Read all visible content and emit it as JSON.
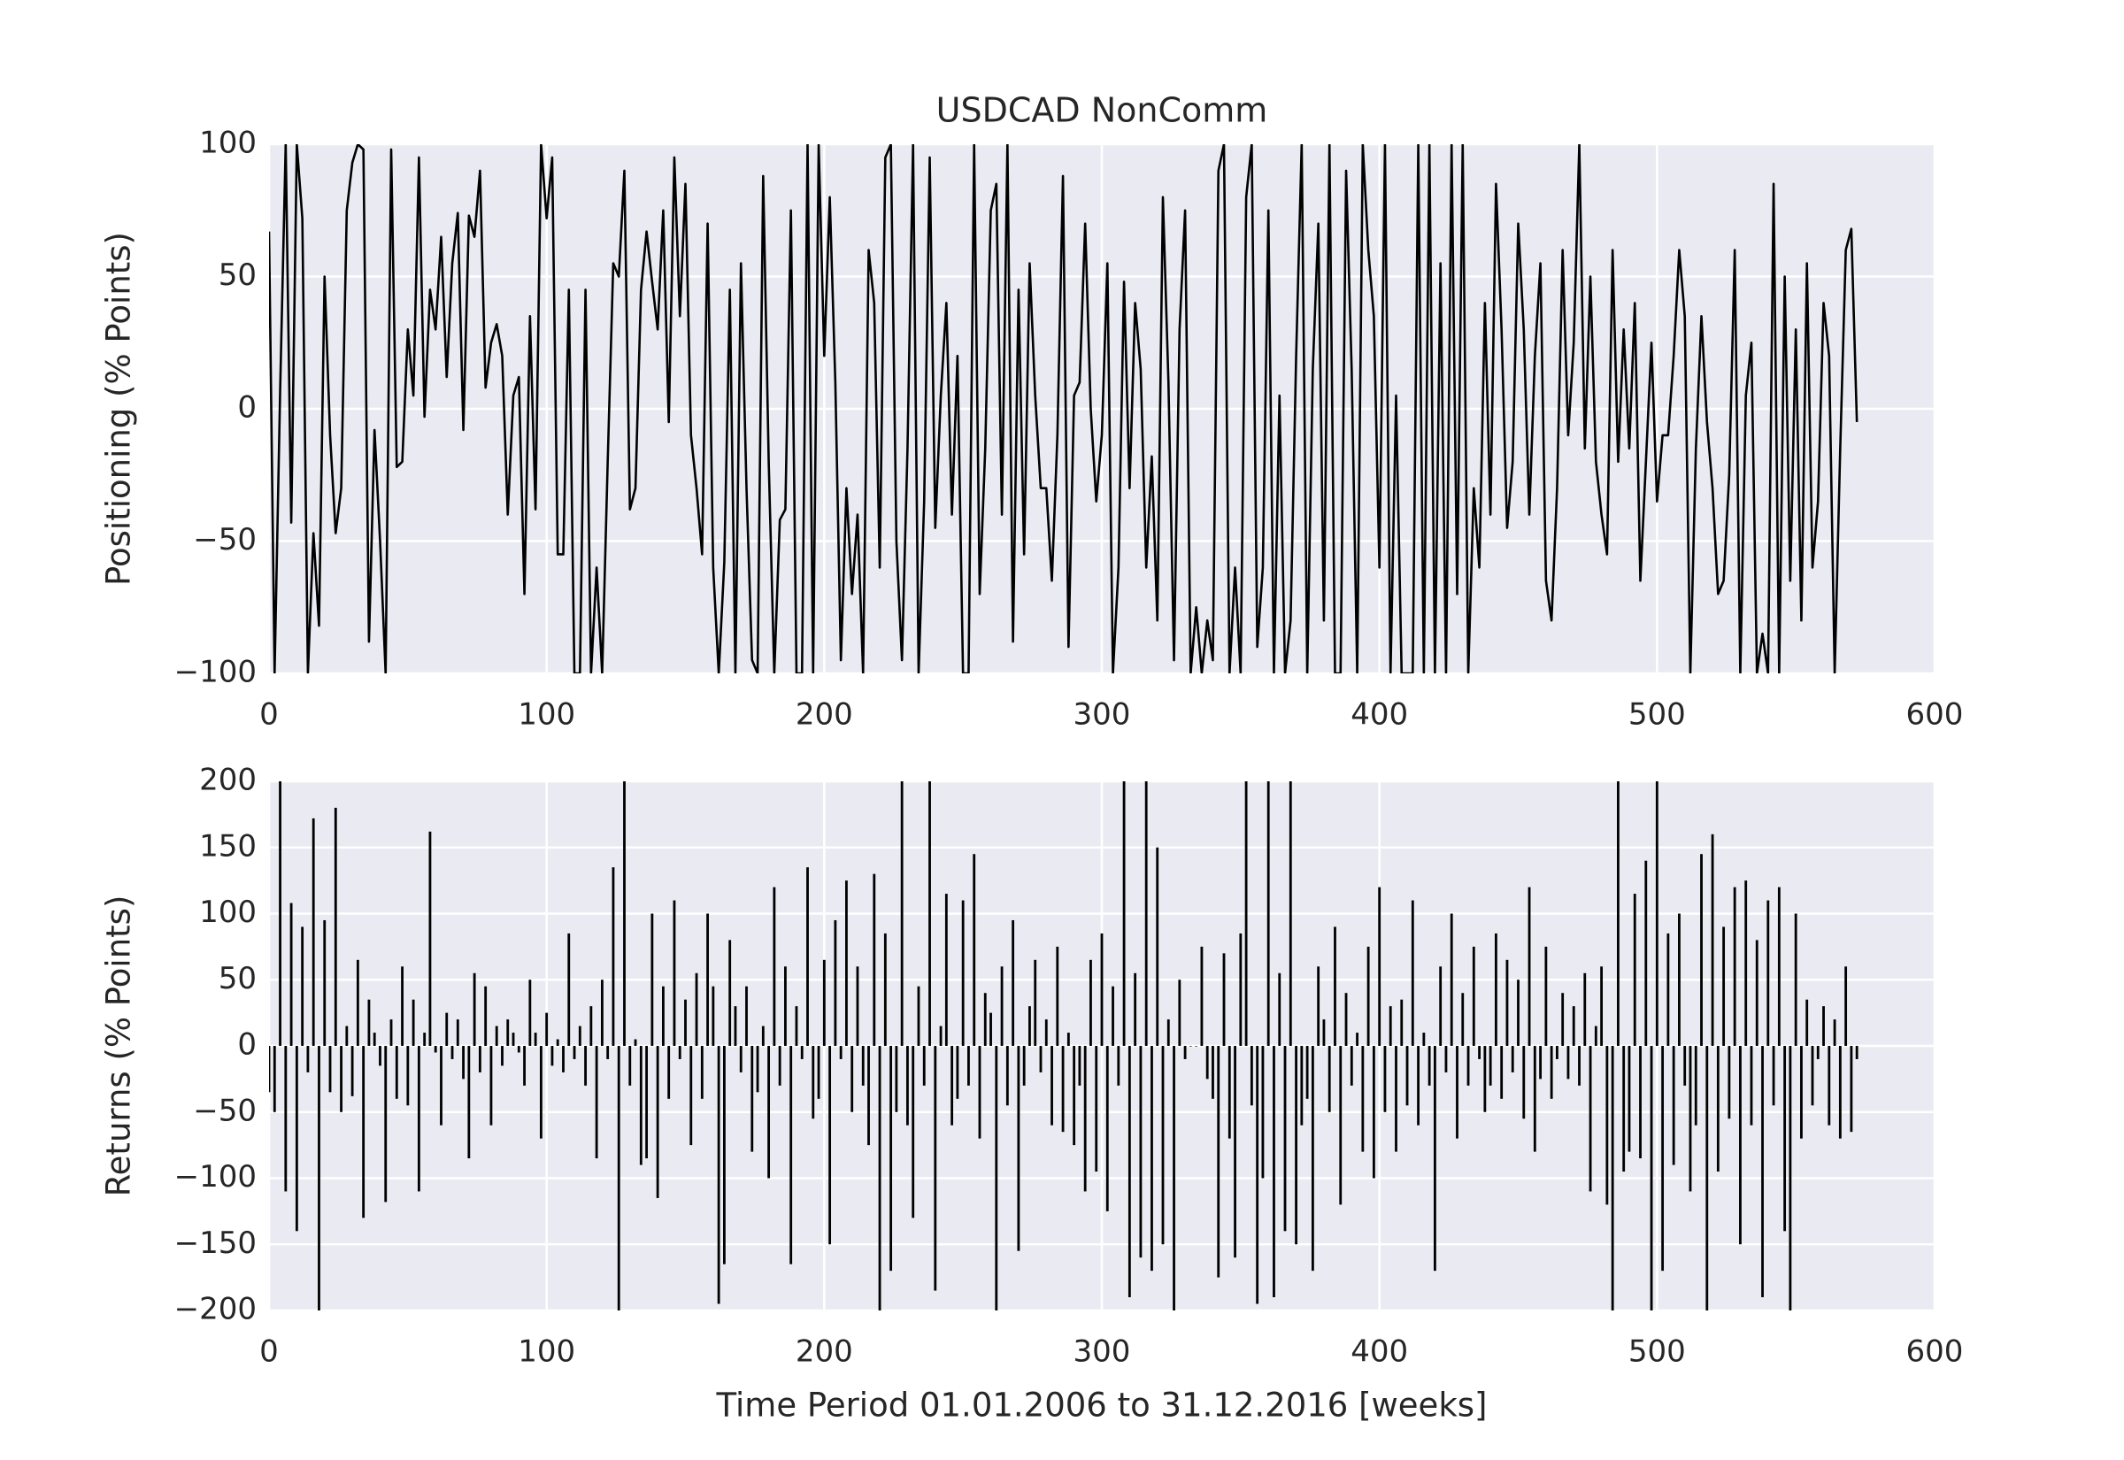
{
  "chart_data": [
    {
      "type": "line",
      "title": "USDCAD NonComm",
      "ylabel": "Positioning (% Points)",
      "color": "#000000",
      "grid": true,
      "xlim": [
        0,
        600
      ],
      "xticks": [
        0,
        100,
        200,
        300,
        400,
        500,
        600
      ],
      "ylim": [
        -100,
        100
      ],
      "yticks": [
        {
          "value": -100,
          "label": "−100"
        },
        {
          "value": -50,
          "label": "−50"
        },
        0,
        50,
        100
      ],
      "x": [
        0,
        2,
        4,
        6,
        8,
        10,
        12,
        14,
        16,
        18,
        20,
        22,
        24,
        26,
        28,
        30,
        32,
        34,
        36,
        38,
        40,
        42,
        44,
        46,
        48,
        50,
        52,
        54,
        56,
        58,
        60,
        62,
        64,
        66,
        68,
        70,
        72,
        74,
        76,
        78,
        80,
        82,
        84,
        86,
        88,
        90,
        92,
        94,
        96,
        98,
        100,
        102,
        104,
        106,
        108,
        110,
        112,
        114,
        116,
        118,
        120,
        122,
        124,
        126,
        128,
        130,
        132,
        134,
        136,
        138,
        140,
        142,
        144,
        146,
        148,
        150,
        152,
        154,
        156,
        158,
        160,
        162,
        164,
        166,
        168,
        170,
        172,
        174,
        176,
        178,
        180,
        182,
        184,
        186,
        188,
        190,
        192,
        194,
        196,
        198,
        200,
        202,
        204,
        206,
        208,
        210,
        212,
        214,
        216,
        218,
        220,
        222,
        224,
        226,
        228,
        230,
        232,
        234,
        236,
        238,
        240,
        242,
        244,
        246,
        248,
        250,
        252,
        254,
        256,
        258,
        260,
        262,
        264,
        266,
        268,
        270,
        272,
        274,
        276,
        278,
        280,
        282,
        284,
        286,
        288,
        290,
        292,
        294,
        296,
        298,
        300,
        302,
        304,
        306,
        308,
        310,
        312,
        314,
        316,
        318,
        320,
        322,
        324,
        326,
        328,
        330,
        332,
        334,
        336,
        338,
        340,
        342,
        344,
        346,
        348,
        350,
        352,
        354,
        356,
        358,
        360,
        362,
        364,
        366,
        368,
        370,
        372,
        374,
        376,
        378,
        380,
        382,
        384,
        386,
        388,
        390,
        392,
        394,
        396,
        398,
        400,
        402,
        404,
        406,
        408,
        410,
        412,
        414,
        416,
        418,
        420,
        422,
        424,
        426,
        428,
        430,
        432,
        434,
        436,
        438,
        440,
        442,
        444,
        446,
        448,
        450,
        452,
        454,
        456,
        458,
        460,
        462,
        464,
        466,
        468,
        470,
        472,
        474,
        476,
        478,
        480,
        482,
        484,
        486,
        488,
        490,
        492,
        494,
        496,
        498,
        500,
        502,
        504,
        506,
        508,
        510,
        512,
        514,
        516,
        518,
        520,
        522,
        524,
        526,
        528,
        530,
        532,
        534,
        536,
        538,
        540,
        542,
        544,
        546,
        548,
        550,
        552,
        554,
        556,
        558,
        560,
        562,
        564,
        566,
        568,
        570,
        572
      ],
      "values": [
        67,
        -100,
        7,
        100,
        -43,
        100,
        72,
        -100,
        -47,
        -82,
        50,
        -10,
        -47,
        -30,
        75,
        93,
        100,
        98,
        -88,
        -8,
        -50,
        -100,
        98,
        -22,
        -20,
        30,
        5,
        95,
        -3,
        45,
        30,
        65,
        12,
        55,
        74,
        -8,
        73,
        65,
        90,
        8,
        25,
        32,
        20,
        -40,
        5,
        12,
        -70,
        35,
        -38,
        100,
        72,
        95,
        -55,
        -55,
        45,
        -100,
        -100,
        45,
        -100,
        -60,
        -100,
        -20,
        55,
        50,
        90,
        -38,
        -30,
        45,
        67,
        48,
        30,
        75,
        -5,
        95,
        35,
        85,
        -10,
        -30,
        -55,
        70,
        -60,
        -100,
        -58,
        45,
        -100,
        55,
        -30,
        -95,
        -100,
        88,
        -20,
        -100,
        -42,
        -38,
        75,
        -100,
        -100,
        100,
        -100,
        100,
        20,
        80,
        10,
        -95,
        -30,
        -70,
        -40,
        -100,
        60,
        40,
        -60,
        95,
        100,
        -50,
        -95,
        -15,
        100,
        -100,
        -35,
        95,
        -45,
        5,
        40,
        -40,
        20,
        -100,
        -100,
        100,
        -70,
        -15,
        75,
        85,
        -40,
        100,
        -88,
        45,
        -55,
        55,
        5,
        -30,
        -30,
        -65,
        -10,
        88,
        -90,
        5,
        10,
        70,
        0,
        -35,
        -10,
        55,
        -100,
        -60,
        48,
        -30,
        40,
        15,
        -60,
        -18,
        -80,
        80,
        10,
        -95,
        30,
        75,
        -100,
        -75,
        -100,
        -80,
        -95,
        90,
        100,
        -100,
        -60,
        -100,
        80,
        100,
        -90,
        -60,
        75,
        -100,
        5,
        -100,
        -80,
        20,
        100,
        -100,
        15,
        70,
        -80,
        100,
        -100,
        -100,
        90,
        15,
        -100,
        100,
        60,
        35,
        -60,
        100,
        -100,
        5,
        -100,
        -100,
        -100,
        100,
        -100,
        100,
        -100,
        55,
        -100,
        100,
        -70,
        100,
        -100,
        -30,
        -60,
        40,
        -40,
        85,
        30,
        -45,
        -20,
        70,
        30,
        -40,
        20,
        55,
        -65,
        -80,
        -30,
        60,
        -10,
        25,
        100,
        -15,
        50,
        -20,
        -40,
        -55,
        60,
        -20,
        30,
        -15,
        40,
        -65,
        -20,
        25,
        -35,
        -10,
        -10,
        20,
        60,
        35,
        -100,
        -15,
        35,
        -5,
        -30,
        -70,
        -65,
        -25,
        60,
        -100,
        5,
        25,
        -100,
        -85,
        -100,
        85,
        -100,
        50,
        -65,
        30,
        -80,
        55,
        -60,
        -35,
        40,
        20,
        -100,
        -15,
        60,
        68,
        -5
      ]
    },
    {
      "type": "bar",
      "ylabel": "Returns (% Points)",
      "xlabel": "Time Period 01.01.2006 to 31.12.2016 [weeks]",
      "color": "#000000",
      "grid": true,
      "xlim": [
        0,
        600
      ],
      "xticks": [
        0,
        100,
        200,
        300,
        400,
        500,
        600
      ],
      "ylim": [
        -200,
        200
      ],
      "yticks": [
        {
          "value": -200,
          "label": "−200"
        },
        {
          "value": -150,
          "label": "−150"
        },
        {
          "value": -100,
          "label": "−100"
        },
        {
          "value": -50,
          "label": "−50"
        },
        0,
        50,
        100,
        150,
        200
      ],
      "x": [
        0,
        2,
        4,
        6,
        8,
        10,
        12,
        14,
        16,
        18,
        20,
        22,
        24,
        26,
        28,
        30,
        32,
        34,
        36,
        38,
        40,
        42,
        44,
        46,
        48,
        50,
        52,
        54,
        56,
        58,
        60,
        62,
        64,
        66,
        68,
        70,
        72,
        74,
        76,
        78,
        80,
        82,
        84,
        86,
        88,
        90,
        92,
        94,
        96,
        98,
        100,
        102,
        104,
        106,
        108,
        110,
        112,
        114,
        116,
        118,
        120,
        122,
        124,
        126,
        128,
        130,
        132,
        134,
        136,
        138,
        140,
        142,
        144,
        146,
        148,
        150,
        152,
        154,
        156,
        158,
        160,
        162,
        164,
        166,
        168,
        170,
        172,
        174,
        176,
        178,
        180,
        182,
        184,
        186,
        188,
        190,
        192,
        194,
        196,
        198,
        200,
        202,
        204,
        206,
        208,
        210,
        212,
        214,
        216,
        218,
        220,
        222,
        224,
        226,
        228,
        230,
        232,
        234,
        236,
        238,
        240,
        242,
        244,
        246,
        248,
        250,
        252,
        254,
        256,
        258,
        260,
        262,
        264,
        266,
        268,
        270,
        272,
        274,
        276,
        278,
        280,
        282,
        284,
        286,
        288,
        290,
        292,
        294,
        296,
        298,
        300,
        302,
        304,
        306,
        308,
        310,
        312,
        314,
        316,
        318,
        320,
        322,
        324,
        326,
        328,
        330,
        332,
        334,
        336,
        338,
        340,
        342,
        344,
        346,
        348,
        350,
        352,
        354,
        356,
        358,
        360,
        362,
        364,
        366,
        368,
        370,
        372,
        374,
        376,
        378,
        380,
        382,
        384,
        386,
        388,
        390,
        392,
        394,
        396,
        398,
        400,
        402,
        404,
        406,
        408,
        410,
        412,
        414,
        416,
        418,
        420,
        422,
        424,
        426,
        428,
        430,
        432,
        434,
        436,
        438,
        440,
        442,
        444,
        446,
        448,
        450,
        452,
        454,
        456,
        458,
        460,
        462,
        464,
        466,
        468,
        470,
        472,
        474,
        476,
        478,
        480,
        482,
        484,
        486,
        488,
        490,
        492,
        494,
        496,
        498,
        500,
        502,
        504,
        506,
        508,
        510,
        512,
        514,
        516,
        518,
        520,
        522,
        524,
        526,
        528,
        530,
        532,
        534,
        536,
        538,
        540,
        542,
        544,
        546,
        548,
        550,
        552,
        554,
        556,
        558,
        560,
        562,
        564,
        566,
        568,
        570,
        572
      ],
      "values": [
        -35,
        -50,
        200,
        -110,
        108,
        -140,
        90,
        -20,
        172,
        -200,
        95,
        -35,
        180,
        -50,
        15,
        -38,
        65,
        -130,
        35,
        10,
        -15,
        -118,
        20,
        -40,
        60,
        -45,
        35,
        -110,
        10,
        162,
        -5,
        -60,
        25,
        -10,
        20,
        -25,
        -85,
        55,
        -20,
        45,
        -60,
        15,
        -15,
        20,
        10,
        -5,
        -30,
        50,
        10,
        -70,
        25,
        -15,
        5,
        -20,
        85,
        -10,
        15,
        -30,
        30,
        -85,
        50,
        -10,
        135,
        -200,
        200,
        -30,
        5,
        -90,
        -85,
        100,
        -115,
        45,
        -40,
        110,
        -10,
        35,
        -75,
        55,
        -40,
        100,
        45,
        -195,
        -165,
        80,
        30,
        -20,
        45,
        -80,
        -35,
        15,
        -100,
        120,
        -30,
        60,
        -165,
        30,
        -10,
        135,
        -55,
        -40,
        65,
        -150,
        95,
        -10,
        125,
        -50,
        60,
        -30,
        -75,
        130,
        -200,
        85,
        -170,
        -50,
        200,
        -60,
        -130,
        45,
        -30,
        200,
        -185,
        15,
        115,
        -60,
        -40,
        110,
        -30,
        145,
        -70,
        40,
        25,
        -200,
        60,
        -45,
        95,
        -155,
        -30,
        30,
        65,
        -20,
        20,
        -60,
        75,
        -65,
        10,
        -75,
        -30,
        -110,
        65,
        -95,
        85,
        -125,
        45,
        -30,
        200,
        -190,
        55,
        -160,
        200,
        -170,
        150,
        -150,
        20,
        -200,
        50,
        -10,
        0,
        0,
        75,
        -25,
        -40,
        -175,
        70,
        -70,
        -160,
        85,
        200,
        -45,
        -195,
        -100,
        200,
        -190,
        55,
        -140,
        200,
        -150,
        -60,
        -40,
        -170,
        60,
        20,
        -50,
        90,
        -120,
        40,
        -30,
        10,
        -80,
        75,
        -100,
        120,
        -50,
        30,
        -80,
        35,
        -45,
        110,
        -60,
        10,
        -30,
        -170,
        60,
        -20,
        100,
        -70,
        40,
        -30,
        75,
        -10,
        -50,
        -30,
        85,
        -40,
        65,
        -20,
        50,
        -55,
        120,
        -80,
        -25,
        75,
        -40,
        -10,
        40,
        -25,
        30,
        -30,
        55,
        -110,
        15,
        60,
        -120,
        -200,
        200,
        -95,
        -80,
        115,
        -85,
        140,
        -200,
        200,
        -170,
        85,
        -90,
        100,
        -30,
        -110,
        -60,
        145,
        -200,
        160,
        -95,
        90,
        -55,
        120,
        -150,
        125,
        -60,
        80,
        -190,
        110,
        -45,
        120,
        -140,
        -200,
        100,
        -70,
        35,
        -45,
        -10,
        30,
        -60,
        20,
        -70,
        60,
        -65,
        -10
      ]
    }
  ]
}
